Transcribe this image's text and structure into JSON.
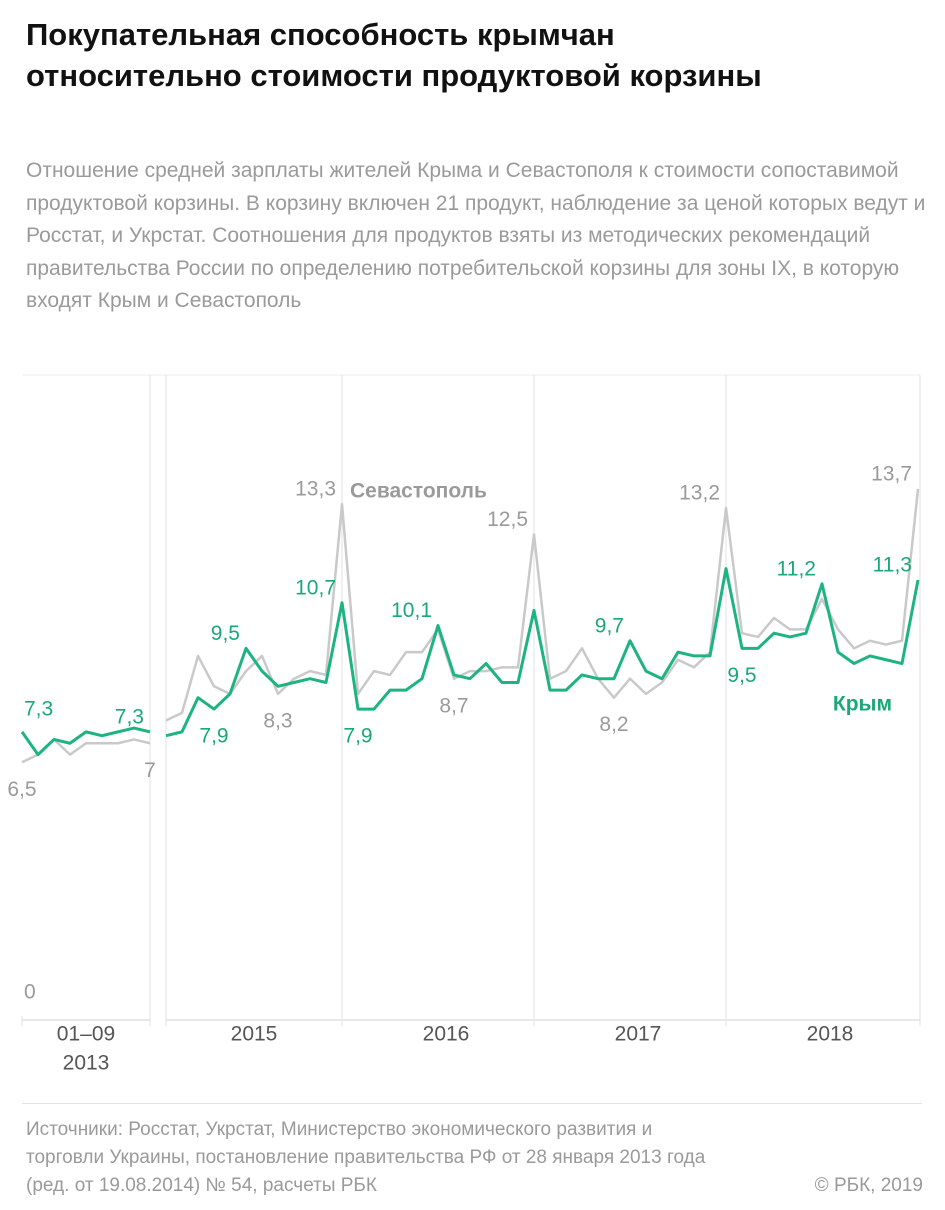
{
  "title": "Покупательная способность крымчан относительно стоимости продуктовой корзины",
  "subtitle": "Отношение средней зарплаты жителей Крыма и Севастополя к стоимости сопоставимой продуктовой корзины. В корзину включен 21 продукт, наблюдение за ценой которых ведут и Росстат, и Укрстат. Соотношения для продуктов взяты из методических рекомендаций правительства России по определению потребительской корзины для зоны IX, в которую входят Крым и Севастополь",
  "source": "Источники: Росстат, Укрстат, Министерство экономического развития и торговли Украины, постановление правительства РФ от 28 января 2013 года (ред. от 19.08.2014) № 54, расчеты РБК",
  "credit": "© РБК, 2019",
  "chart_data": [
    {
      "type": "line",
      "categories": [
        null,
        null,
        null,
        null,
        null,
        null,
        null,
        null,
        null
      ],
      "period_label": [
        "01–09",
        "2013"
      ],
      "ylim": [
        0,
        16.7
      ],
      "yticks": [
        0
      ],
      "series": [
        {
          "color": "#c9c9c9",
          "label_color": "#9a9a9a",
          "values": [
            6.5,
            6.7,
            7.1,
            6.7,
            7.0,
            7.0,
            7.0,
            7.1,
            7.0
          ],
          "value_labels": [
            "6,5",
            null,
            null,
            null,
            null,
            null,
            null,
            null,
            "7"
          ]
        },
        {
          "color": "#1db47f",
          "label_color": "#1aa878",
          "values": [
            7.3,
            6.7,
            7.1,
            7.0,
            7.3,
            7.2,
            7.3,
            7.4,
            7.3
          ],
          "value_labels": [
            "7,3",
            null,
            null,
            null,
            null,
            null,
            null,
            null,
            "7,3"
          ]
        }
      ]
    },
    {
      "type": "line",
      "categories": [
        null,
        null,
        null,
        null,
        null,
        null,
        null,
        null,
        null,
        null,
        null,
        null,
        null,
        null,
        null,
        null,
        null,
        null,
        null,
        null,
        null,
        null,
        null,
        null,
        null,
        null,
        null,
        null,
        null,
        null,
        null,
        null,
        null,
        null,
        null,
        null,
        null,
        null,
        null,
        null,
        null,
        null,
        null,
        null,
        null,
        null,
        null,
        null
      ],
      "year_labels": [
        "2015",
        "2016",
        "2017",
        "2018"
      ],
      "ylim": [
        0,
        16.7
      ],
      "series": [
        {
          "name": "Севастополь",
          "color": "#c9c9c9",
          "label_color": "#9a9a9a",
          "values": [
            7.6,
            7.8,
            9.3,
            8.5,
            8.3,
            8.9,
            9.3,
            8.3,
            8.7,
            8.9,
            8.8,
            13.3,
            8.3,
            8.9,
            8.8,
            9.4,
            9.4,
            10.0,
            8.7,
            8.9,
            8.9,
            9.0,
            9.0,
            12.5,
            8.7,
            8.9,
            9.5,
            8.7,
            8.2,
            8.7,
            8.3,
            8.6,
            9.2,
            9.0,
            9.4,
            13.2,
            9.9,
            9.8,
            10.3,
            10.0,
            10.0,
            10.8,
            10.0,
            9.5,
            9.7,
            9.6,
            9.7,
            13.7
          ],
          "value_labels": [
            null,
            null,
            null,
            null,
            null,
            null,
            null,
            "8,3",
            null,
            null,
            null,
            "13,3",
            null,
            null,
            null,
            null,
            null,
            null,
            "8,7",
            null,
            null,
            null,
            null,
            "12,5",
            null,
            null,
            null,
            null,
            "8,2",
            null,
            null,
            null,
            null,
            null,
            null,
            "13,2",
            null,
            null,
            null,
            null,
            null,
            null,
            null,
            null,
            null,
            null,
            null,
            "13,7"
          ]
        },
        {
          "name": "Крым",
          "color": "#1db47f",
          "label_color": "#1aa878",
          "values": [
            7.2,
            7.3,
            8.2,
            7.9,
            8.3,
            9.5,
            8.9,
            8.5,
            8.6,
            8.7,
            8.6,
            10.7,
            7.9,
            7.9,
            8.4,
            8.4,
            8.7,
            10.1,
            8.8,
            8.7,
            9.1,
            8.6,
            8.6,
            10.5,
            8.4,
            8.4,
            8.8,
            8.7,
            8.7,
            9.7,
            8.9,
            8.7,
            9.4,
            9.3,
            9.3,
            11.6,
            9.5,
            9.5,
            9.9,
            9.8,
            9.9,
            11.2,
            9.4,
            9.1,
            9.3,
            9.2,
            9.1,
            11.3
          ],
          "value_labels": [
            null,
            null,
            null,
            "7,9",
            null,
            "9,5",
            null,
            null,
            null,
            null,
            null,
            "10,7",
            "7,9",
            null,
            null,
            null,
            null,
            "10,1",
            null,
            null,
            null,
            null,
            null,
            null,
            null,
            null,
            null,
            null,
            null,
            "9,7",
            null,
            null,
            null,
            null,
            null,
            null,
            "9,5",
            null,
            null,
            null,
            null,
            "11,2",
            null,
            null,
            null,
            null,
            null,
            "11,3"
          ]
        }
      ]
    }
  ]
}
